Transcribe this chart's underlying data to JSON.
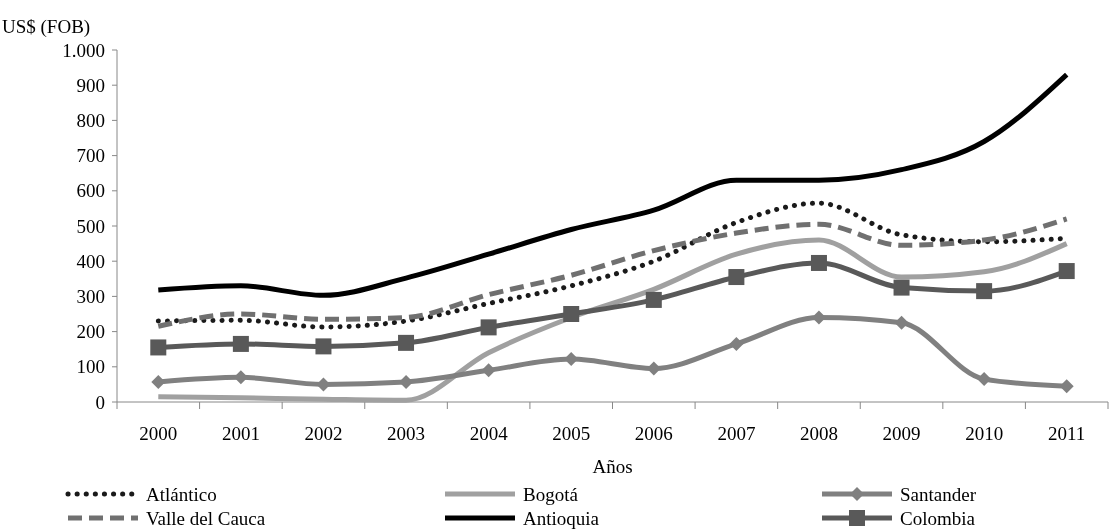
{
  "chart_data": {
    "type": "line",
    "ylabel": "US$ (FOB)",
    "xlabel": "Años",
    "categories": [
      "2000",
      "2001",
      "2002",
      "2003",
      "2004",
      "2005",
      "2006",
      "2007",
      "2008",
      "2009",
      "2010",
      "2011"
    ],
    "series": [
      {
        "name": "Atlántico",
        "color": "#1a1a1a",
        "line_style": "dotted",
        "marker": "none",
        "values": [
          230,
          232,
          213,
          230,
          280,
          330,
          400,
          510,
          565,
          475,
          455,
          465
        ]
      },
      {
        "name": "Bogotá",
        "color": "#a0a0a0",
        "line_style": "solid",
        "marker": "none",
        "values": [
          15,
          12,
          8,
          5,
          140,
          240,
          320,
          420,
          460,
          355,
          370,
          450
        ]
      },
      {
        "name": "Santander",
        "color": "#808080",
        "line_style": "solid",
        "marker": "diamond",
        "values": [
          57,
          70,
          50,
          57,
          90,
          122,
          95,
          165,
          240,
          225,
          65,
          45
        ]
      },
      {
        "name": "Valle del Cauca",
        "color": "#707070",
        "line_style": "dashed",
        "marker": "none",
        "values": [
          215,
          250,
          235,
          240,
          305,
          360,
          430,
          480,
          505,
          445,
          460,
          520
        ]
      },
      {
        "name": "Antioquia",
        "color": "#000000",
        "line_style": "solid",
        "marker": "none",
        "values": [
          318,
          330,
          303,
          352,
          420,
          490,
          545,
          630,
          630,
          660,
          740,
          930
        ]
      },
      {
        "name": "Colombia",
        "color": "#595959",
        "line_style": "solid",
        "marker": "square",
        "values": [
          155,
          165,
          158,
          168,
          212,
          250,
          290,
          355,
          395,
          325,
          315,
          372
        ]
      }
    ],
    "ylim": [
      0,
      1000
    ],
    "yticks": [
      0,
      100,
      200,
      300,
      400,
      500,
      600,
      700,
      800,
      900,
      {
        "value": 1000,
        "label": "1.000"
      }
    ],
    "grid": false,
    "legend": "bottom"
  }
}
